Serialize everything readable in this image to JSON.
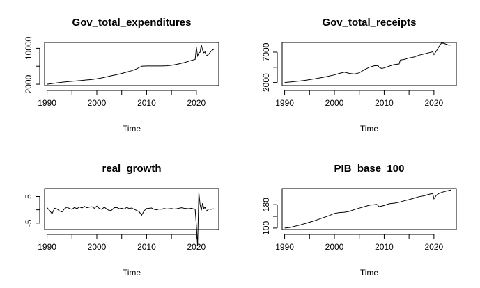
{
  "chart_data": [
    {
      "type": "line",
      "title": "Gov_total_expenditures",
      "xlabel": "Time",
      "ylabel": "",
      "xlim": [
        1989.5,
        2024.5
      ],
      "ylim": [
        1700,
        11300
      ],
      "x_ticks": [
        1990,
        2000,
        2010,
        2020
      ],
      "y_ticks": [
        2000,
        6000,
        10000
      ],
      "y_tick_labels": [
        "2000",
        "",
        "10000"
      ],
      "minor_y_ticks": [
        6000
      ],
      "series": [
        {
          "x": [
            1990,
            1991,
            1992,
            1993,
            1994,
            1995,
            1996,
            1997,
            1998,
            1999,
            2000,
            2001,
            2002,
            2003,
            2004,
            2005,
            2006,
            2007,
            2008,
            2009,
            2010,
            2011,
            2012,
            2013,
            2014,
            2015,
            2016,
            2017,
            2018,
            2019,
            2019.75,
            2020,
            2020.25,
            2020.5,
            2020.75,
            2021,
            2021.25,
            2021.5,
            2021.75,
            2022,
            2022.5,
            2023,
            2023.5
          ],
          "values": [
            2000,
            2150,
            2300,
            2450,
            2550,
            2650,
            2750,
            2850,
            2950,
            3050,
            3200,
            3400,
            3650,
            3900,
            4150,
            4400,
            4700,
            5000,
            5400,
            6000,
            6050,
            6050,
            6050,
            6050,
            6100,
            6200,
            6400,
            6650,
            6950,
            7300,
            7500,
            10200,
            8300,
            9000,
            9100,
            10800,
            9600,
            9000,
            9200,
            8300,
            8700,
            9400,
            9800
          ]
        }
      ]
    },
    {
      "type": "line",
      "title": "Gov_total_receipts",
      "xlabel": "Time",
      "ylabel": "",
      "xlim": [
        1989.5,
        2024.5
      ],
      "ylim": [
        1500,
        8600
      ],
      "x_ticks": [
        1990,
        2000,
        2010,
        2020
      ],
      "y_ticks": [
        2000,
        4500,
        7000
      ],
      "y_tick_labels": [
        "2000",
        "",
        "7000"
      ],
      "minor_y_ticks": [
        4500
      ],
      "series": [
        {
          "x": [
            1990,
            1992,
            1994,
            1996,
            1998,
            2000,
            2001,
            2002,
            2003,
            2004,
            2005,
            2006,
            2007,
            2008,
            2008.75,
            2009,
            2009.5,
            2010,
            2011,
            2012,
            2013,
            2013.25,
            2014,
            2015,
            2016,
            2017,
            2018,
            2019,
            2019.75,
            2020,
            2020.5,
            2021,
            2021.5,
            2022,
            2022.5,
            2023,
            2023.5
          ],
          "values": [
            2000,
            2150,
            2350,
            2600,
            2900,
            3250,
            3500,
            3700,
            3500,
            3400,
            3600,
            4100,
            4500,
            4750,
            4800,
            4500,
            4300,
            4400,
            4700,
            4950,
            5050,
            5700,
            5800,
            6050,
            6200,
            6500,
            6700,
            6900,
            7050,
            6600,
            7200,
            7900,
            8500,
            8450,
            8300,
            8150,
            8200
          ]
        }
      ]
    },
    {
      "type": "line",
      "title": "real_growth",
      "xlabel": "Time",
      "ylabel": "",
      "xlim": [
        1989.5,
        2024.5
      ],
      "ylim": [
        -7.4,
        8
      ],
      "x_ticks": [
        1990,
        2000,
        2010,
        2020
      ],
      "y_ticks": [
        -5,
        0,
        5
      ],
      "y_tick_labels": [
        "-5",
        "",
        "5"
      ],
      "minor_y_ticks": [
        0
      ],
      "series": [
        {
          "x": [
            1990,
            1990.5,
            1991,
            1991.5,
            1992,
            1992.5,
            1993,
            1993.5,
            1994,
            1994.5,
            1995,
            1995.5,
            1996,
            1996.5,
            1997,
            1997.5,
            1998,
            1998.5,
            1999,
            1999.5,
            2000,
            2000.5,
            2001,
            2001.5,
            2002,
            2002.5,
            2003,
            2003.5,
            2004,
            2004.5,
            2005,
            2005.5,
            2006,
            2006.5,
            2007,
            2007.5,
            2008,
            2008.5,
            2009,
            2009.5,
            2010,
            2010.5,
            2011,
            2011.5,
            2012,
            2012.5,
            2013,
            2013.5,
            2014,
            2014.5,
            2015,
            2015.5,
            2016,
            2016.5,
            2017,
            2017.5,
            2018,
            2018.5,
            2019,
            2019.5,
            2019.75,
            2020,
            2020.25,
            2020.5,
            2020.75,
            2021,
            2021.25,
            2021.5,
            2021.75,
            2022,
            2022.5,
            2023,
            2023.5
          ],
          "values": [
            0.8,
            -0.2,
            -1.5,
            0.6,
            0.3,
            -0.4,
            -0.8,
            0.4,
            1.0,
            0.5,
            0.2,
            0.9,
            0.4,
            1.1,
            0.7,
            1.3,
            0.8,
            1.0,
            1.2,
            0.6,
            1.4,
            0.5,
            0.2,
            1.0,
            0.3,
            -0.3,
            -0.1,
            0.8,
            0.9,
            0.4,
            0.6,
            0.3,
            0.9,
            0.5,
            0.7,
            0.2,
            -0.2,
            -0.7,
            -2.0,
            -0.4,
            0.5,
            0.6,
            0.7,
            0.2,
            0.0,
            0.3,
            0.2,
            0.5,
            0.3,
            0.4,
            0.5,
            0.3,
            0.4,
            0.6,
            0.8,
            0.6,
            0.5,
            0.4,
            0.6,
            0.3,
            0.2,
            -6.0,
            -13.5,
            6.5,
            2.0,
            -0.2,
            2.5,
            0.5,
            1.0,
            -0.5,
            0.3,
            0.2,
            0.4
          ]
        }
      ]
    },
    {
      "type": "line",
      "title": "PIB_base_100",
      "xlabel": "Time",
      "ylabel": "",
      "xlim": [
        1989.5,
        2024.5
      ],
      "ylim": [
        95,
        235
      ],
      "x_ticks": [
        1990,
        2000,
        2010,
        2020
      ],
      "y_ticks": [
        100,
        140,
        180
      ],
      "y_tick_labels": [
        "100",
        "",
        "180"
      ],
      "minor_y_ticks": [
        140
      ],
      "series": [
        {
          "x": [
            1990,
            1991,
            1992,
            1993,
            1994,
            1995,
            1996,
            1997,
            1998,
            1999,
            2000,
            2001,
            2002,
            2003,
            2004,
            2005,
            2006,
            2007,
            2008,
            2008.5,
            2009,
            2010,
            2011,
            2012,
            2013,
            2014,
            2015,
            2016,
            2017,
            2018,
            2019,
            2019.75,
            2020,
            2020.5,
            2021,
            2021.5,
            2022,
            2022.5,
            2023,
            2023.5
          ],
          "values": [
            100,
            102,
            106,
            110,
            115,
            120,
            125,
            131,
            137,
            143,
            150,
            153,
            154,
            157,
            163,
            168,
            173,
            178,
            180,
            181,
            173,
            177,
            183,
            185,
            188,
            193,
            197,
            202,
            207,
            210,
            215,
            218,
            200,
            212,
            218,
            221,
            224,
            226,
            228,
            230
          ]
        }
      ]
    }
  ]
}
